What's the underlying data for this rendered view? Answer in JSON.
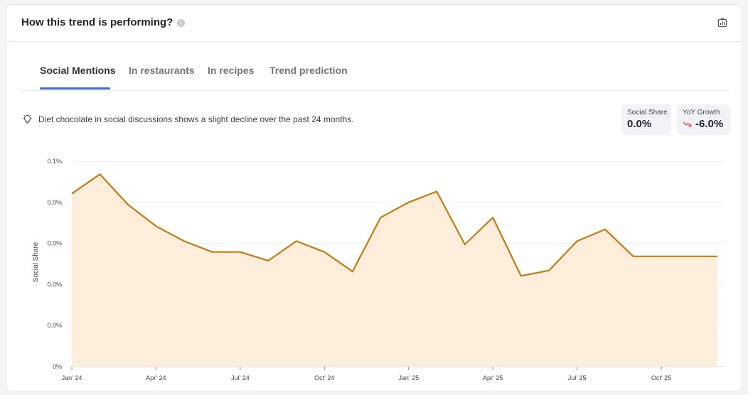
{
  "header": {
    "title": "How this trend is performing?",
    "info_icon": "info-icon",
    "export_icon": "chart-export-icon"
  },
  "tabs": [
    {
      "label": "Social Mentions",
      "active": true
    },
    {
      "label": "In restaurants",
      "active": false
    },
    {
      "label": "In recipes",
      "active": false
    },
    {
      "label": "Trend prediction",
      "active": false
    }
  ],
  "insight": {
    "icon": "lightbulb-icon",
    "text": "Diet chocolate in social discussions shows a slight decline over the past 24 months."
  },
  "metrics": {
    "social_share": {
      "label": "Social Share",
      "value": "0.0%"
    },
    "yoy_growth": {
      "label": "YoY Growth",
      "value": "-6.0%",
      "icon": "trend-down-arrow-icon",
      "color": "#e5484d"
    }
  },
  "colors": {
    "accent": "#3d6be0",
    "line": "#c97a0a",
    "area": "#fdeedb"
  },
  "chart_data": {
    "type": "area",
    "ylabel": "Social Share",
    "x": [
      "Jan '24",
      "Feb '24",
      "Mar '24",
      "Apr '24",
      "May '24",
      "Jun '24",
      "Jul '24",
      "Aug '24",
      "Sep '24",
      "Oct '24",
      "Nov '24",
      "Dec '24",
      "Jan '25",
      "Feb '25",
      "Mar '25",
      "Apr '25",
      "May '25",
      "Jun '25",
      "Jul '25",
      "Aug '25",
      "Sep '25",
      "Oct '25",
      "Nov '25",
      "Dec '25"
    ],
    "values": [
      0.0842,
      0.0937,
      0.0789,
      0.0684,
      0.0611,
      0.0558,
      0.0558,
      0.0516,
      0.0611,
      0.0558,
      0.0463,
      0.0726,
      0.08,
      0.0853,
      0.0595,
      0.0726,
      0.0442,
      0.0468,
      0.0611,
      0.0668,
      0.0537,
      0.0537,
      0.0537,
      0.0537
    ],
    "ylim": [
      0,
      0.1
    ],
    "y_ticks": [
      0,
      0.02,
      0.04,
      0.06,
      0.08,
      0.1
    ],
    "y_tick_labels": [
      "0%",
      "0.0%",
      "0.0%",
      "0.0%",
      "0.0%",
      "0.1%"
    ],
    "x_tick_indices": [
      0,
      3,
      6,
      9,
      12,
      15,
      18,
      21
    ],
    "x_tick_labels": [
      "Jan' 24",
      "Apr' 24",
      "Jul' 24",
      "Oct' 24",
      "Jan' 25",
      "Apr' 25",
      "Jul' 25",
      "Oct' 25"
    ],
    "grid": true,
    "legend": "none"
  }
}
